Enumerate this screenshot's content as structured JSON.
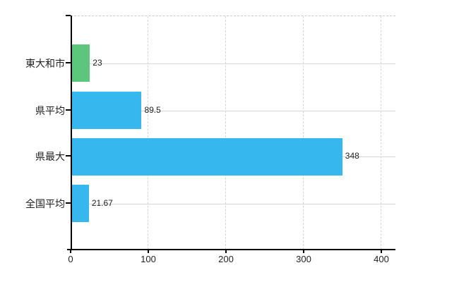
{
  "chart_data": {
    "type": "bar",
    "orientation": "horizontal",
    "title": "",
    "xlabel": "",
    "ylabel": "",
    "categories": [
      "東大和市",
      "県平均",
      "県最大",
      "全国平均"
    ],
    "values": [
      23,
      89.5,
      348,
      21.67
    ],
    "value_labels": [
      "23",
      "89.5",
      "348",
      "21.67"
    ],
    "bar_colors": [
      "#5dc67d",
      "#36b7ee",
      "#36b7ee",
      "#36b7ee"
    ],
    "x_ticks": [
      0,
      100,
      200,
      300,
      400
    ],
    "x_tick_labels": [
      "0",
      "100",
      "200",
      "300",
      "400"
    ],
    "xlim": [
      0,
      418
    ],
    "grid": true,
    "legend": false,
    "gridline_color": "#d4d8d3",
    "axis_color": "#000000",
    "text_color": "#1f1f1f",
    "background_color": "#ffffff"
  }
}
